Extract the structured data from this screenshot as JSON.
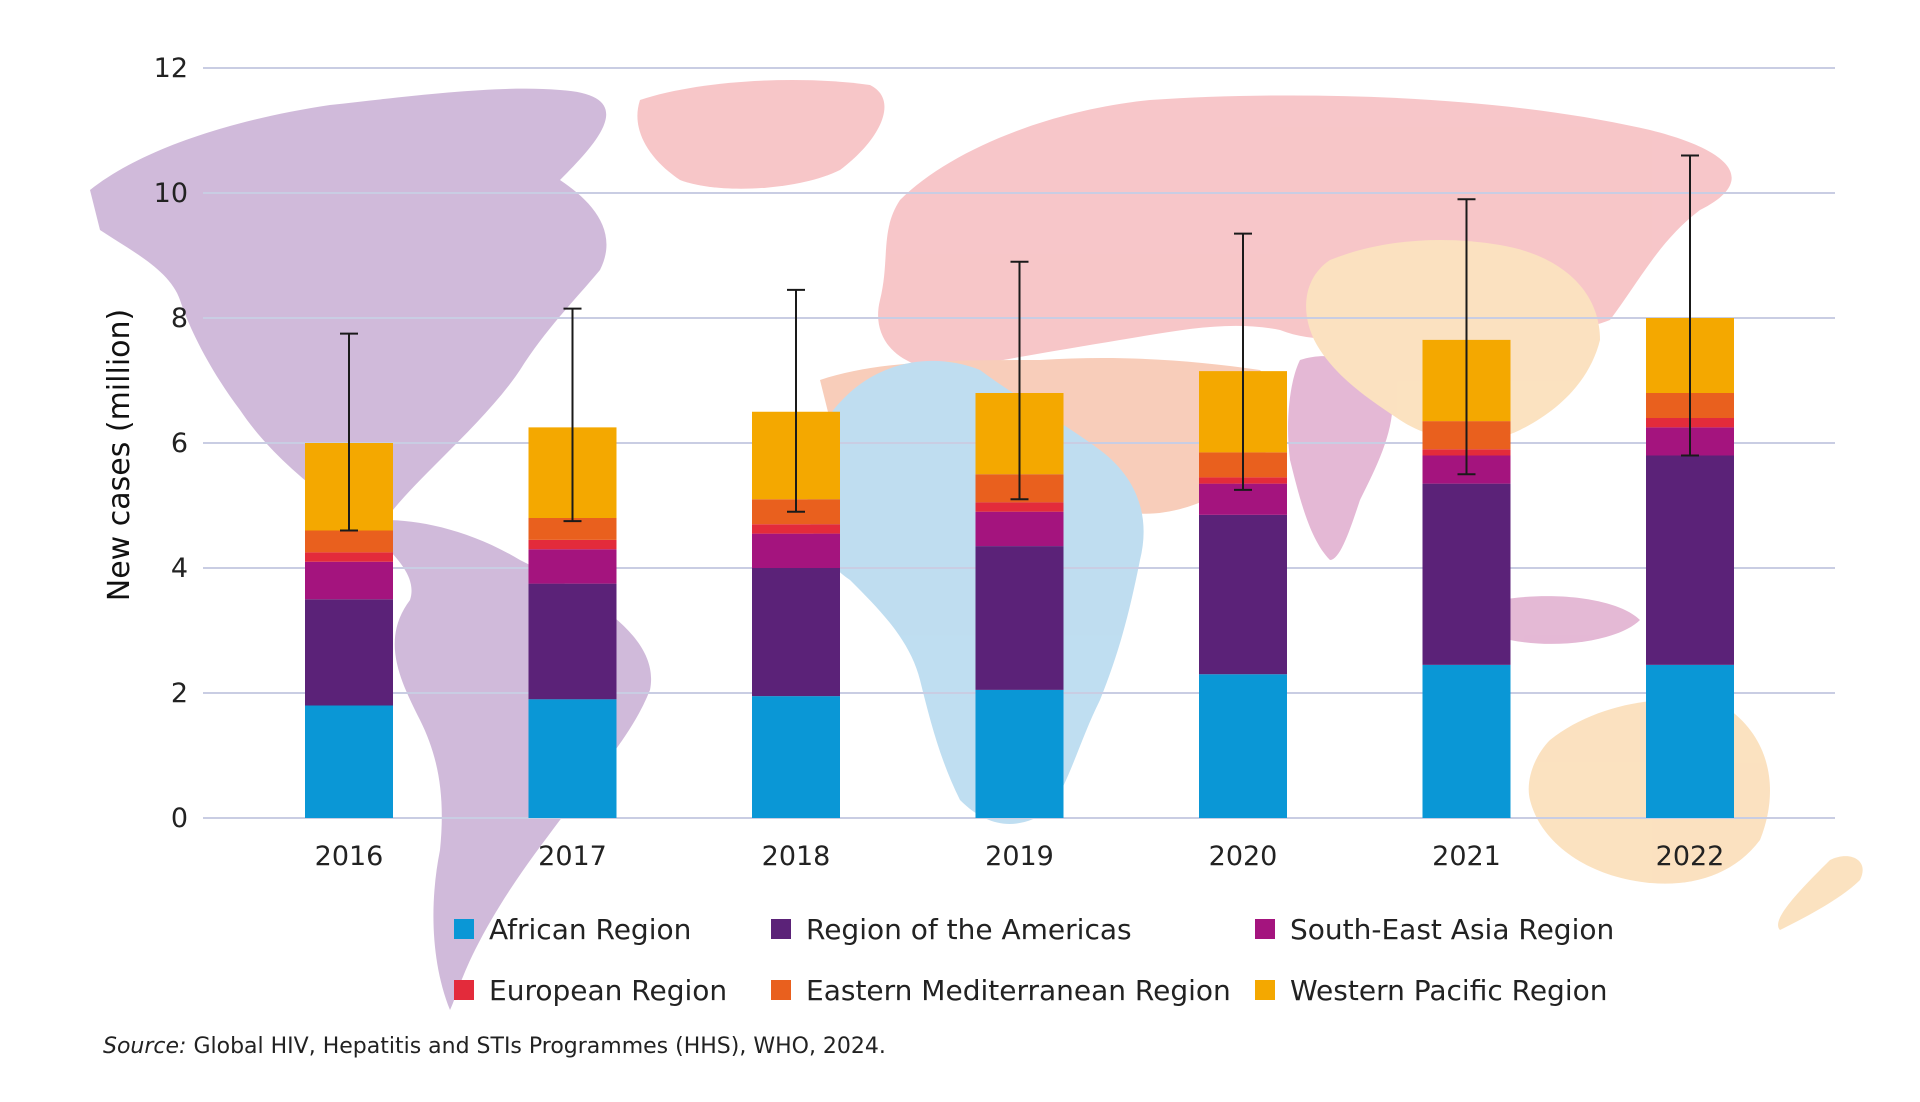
{
  "colors": {
    "background_map": {
      "americas": "#cdb6d8",
      "europe_asia": "#f7c3c6",
      "africa": "#bcdcf0",
      "middle_east": "#f8cbb7",
      "south_east_asia": "#e3b5d3",
      "western_pacific": "#fbe0bd"
    },
    "gridline": "#c9cde3",
    "error_bar": "#1a1a1a"
  },
  "chart_data": {
    "type": "bar",
    "stacked": true,
    "title": "",
    "xlabel": "",
    "ylabel": "New cases (million)",
    "ylim": [
      0,
      12
    ],
    "yticks": [
      "0",
      "2",
      "4",
      "6",
      "8",
      "10",
      "12"
    ],
    "grid": true,
    "legend_position": "bottom",
    "categories": [
      "2016",
      "2017",
      "2018",
      "2019",
      "2020",
      "2021",
      "2022"
    ],
    "series": [
      {
        "name": "African Region",
        "color": "#0a97d6",
        "values": [
          1.8,
          1.9,
          1.95,
          2.05,
          2.3,
          2.45,
          2.45
        ]
      },
      {
        "name": "Region of the Americas",
        "color": "#5b2278",
        "values": [
          1.7,
          1.85,
          2.05,
          2.3,
          2.55,
          2.9,
          3.35
        ]
      },
      {
        "name": "South-East Asia Region",
        "color": "#a4147e",
        "values": [
          0.6,
          0.55,
          0.55,
          0.55,
          0.5,
          0.45,
          0.45
        ]
      },
      {
        "name": "European Region",
        "color": "#e32b3b",
        "values": [
          0.15,
          0.15,
          0.15,
          0.15,
          0.1,
          0.1,
          0.15
        ]
      },
      {
        "name": "Eastern Mediterranean Region",
        "color": "#e9601e",
        "values": [
          0.35,
          0.35,
          0.4,
          0.45,
          0.4,
          0.45,
          0.4
        ]
      },
      {
        "name": "Western Pacific Region",
        "color": "#f4a800",
        "values": [
          1.4,
          1.45,
          1.4,
          1.3,
          1.3,
          1.3,
          1.2
        ]
      }
    ],
    "error_bars": {
      "low": [
        4.6,
        4.75,
        4.9,
        5.1,
        5.25,
        5.5,
        5.8
      ],
      "high": [
        7.75,
        8.15,
        8.45,
        8.9,
        9.35,
        9.9,
        10.6
      ]
    }
  },
  "source": {
    "prefix": "Source:",
    "text": " Global HIV, Hepatitis and STIs Programmes (HHS), WHO, 2024."
  }
}
